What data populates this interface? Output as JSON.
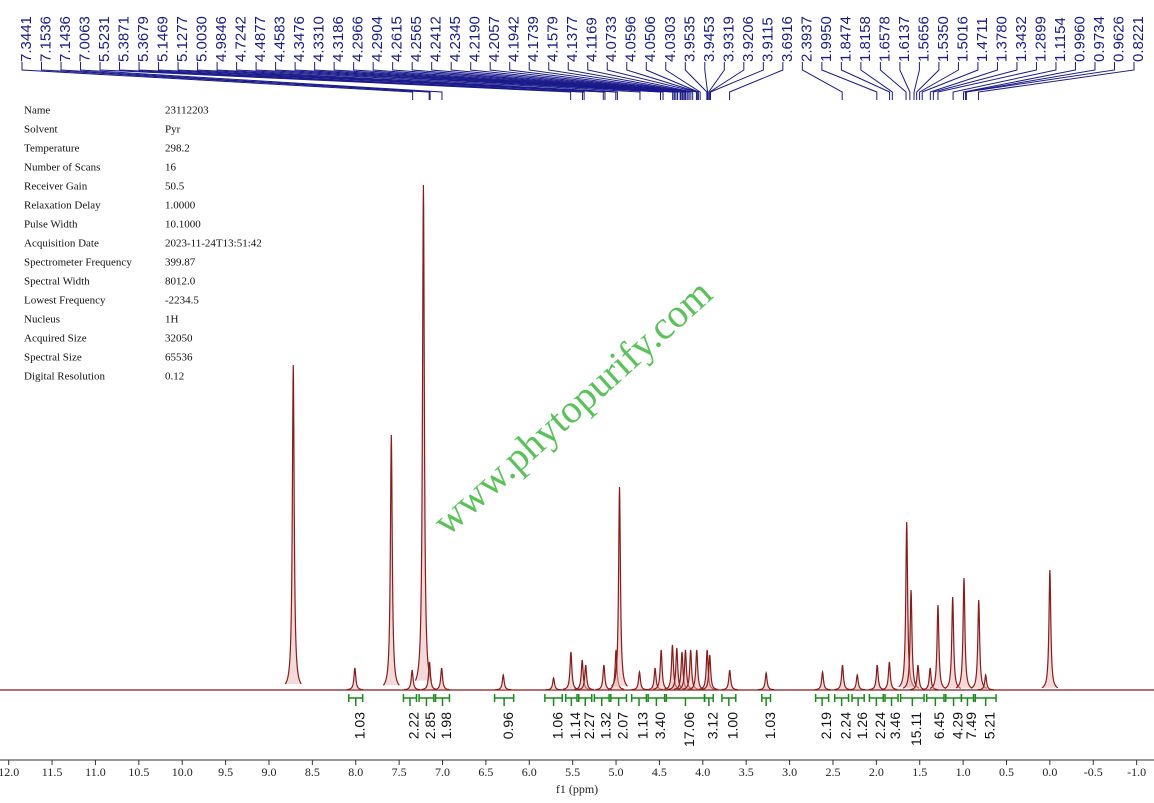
{
  "chart_data": {
    "type": "nmr",
    "x_label": "f1 (ppm)",
    "xlim": [
      12.1,
      -1.2
    ],
    "xticks": [
      {
        "value": 12,
        "label": "12.0"
      },
      11.5,
      {
        "value": 11,
        "label": "11.0"
      },
      10.5,
      {
        "value": 10,
        "label": "10.0"
      },
      9.5,
      {
        "value": 9,
        "label": "9.0"
      },
      8.5,
      {
        "value": 8,
        "label": "8.0"
      },
      7.5,
      {
        "value": 7,
        "label": "7.0"
      },
      6.5,
      {
        "value": 6,
        "label": "6.0"
      },
      5.5,
      {
        "value": 5,
        "label": "5.0"
      },
      4.5,
      {
        "value": 4,
        "label": "4.0"
      },
      3.5,
      {
        "value": 3,
        "label": "3.0"
      },
      2.5,
      {
        "value": 2,
        "label": "2.0"
      },
      1.5,
      {
        "value": 1,
        "label": "1.0"
      },
      0.5,
      {
        "value": 0,
        "label": "0.0"
      },
      -0.5,
      {
        "value": -1,
        "label": "-1.0"
      }
    ],
    "ylim": [
      0,
      105
    ],
    "color": "#8b1a1a",
    "label_color": "#1a1a8b",
    "integral_color": "#1a8b1a",
    "peaks": {
      "x": [
        8.72,
        8.01,
        7.59,
        7.35,
        7.22,
        7.15,
        7.01,
        6.3,
        5.72,
        5.52,
        5.39,
        5.35,
        5.14,
        5.0,
        4.96,
        4.73,
        4.55,
        4.48,
        4.35,
        4.3,
        4.24,
        4.2,
        4.14,
        4.07,
        3.95,
        3.92,
        3.69,
        3.27,
        2.62,
        2.39,
        2.22,
        1.99,
        1.85,
        1.65,
        1.6,
        1.52,
        1.38,
        1.29,
        1.12,
        0.99,
        0.82,
        0.74,
        0.0
      ],
      "values": [
        65,
        4.4,
        51,
        4,
        101,
        5.6,
        4.4,
        3,
        2.4,
        7.6,
        6,
        5,
        5,
        8,
        40.6,
        3.6,
        4.4,
        8,
        9,
        8.4,
        7.6,
        8,
        8,
        8,
        8,
        7,
        4,
        3.4,
        3.6,
        5,
        3,
        5,
        5.6,
        33.6,
        20,
        5,
        4.4,
        17,
        18.6,
        22.4,
        18,
        3,
        24
      ]
    },
    "peak_labels": [
      {
        "value": 7.3441,
        "label": "7.3441"
      },
      {
        "value": 7.1536,
        "label": "7.1536"
      },
      {
        "value": 7.1436,
        "label": "7.1436"
      },
      {
        "value": 7.0063,
        "label": "7.0063"
      },
      {
        "value": 5.5231,
        "label": "5.5231"
      },
      {
        "value": 5.3871,
        "label": "5.3871"
      },
      {
        "value": 5.3679,
        "label": "5.3679"
      },
      {
        "value": 5.1469,
        "label": "5.1469"
      },
      {
        "value": 5.1277,
        "label": "5.1277"
      },
      {
        "value": 5.003,
        "label": "5.0030"
      },
      {
        "value": 4.9846,
        "label": "4.9846"
      },
      {
        "value": 4.7242,
        "label": "4.7242"
      },
      {
        "value": 4.4877,
        "label": "4.4877"
      },
      {
        "value": 4.4583,
        "label": "4.4583"
      },
      {
        "value": 4.3476,
        "label": "4.3476"
      },
      {
        "value": 4.331,
        "label": "4.3310"
      },
      {
        "value": 4.3186,
        "label": "4.3186"
      },
      {
        "value": 4.2966,
        "label": "4.2966"
      },
      {
        "value": 4.2904,
        "label": "4.2904"
      },
      {
        "value": 4.2615,
        "label": "4.2615"
      },
      {
        "value": 4.2565,
        "label": "4.2565"
      },
      {
        "value": 4.2412,
        "label": "4.2412"
      },
      {
        "value": 4.2345,
        "label": "4.2345"
      },
      {
        "value": 4.219,
        "label": "4.2190"
      },
      {
        "value": 4.2057,
        "label": "4.2057"
      },
      {
        "value": 4.1942,
        "label": "4.1942"
      },
      {
        "value": 4.1739,
        "label": "4.1739"
      },
      {
        "value": 4.1579,
        "label": "4.1579"
      },
      {
        "value": 4.1377,
        "label": "4.1377"
      },
      {
        "value": 4.1169,
        "label": "4.1169"
      },
      {
        "value": 4.0733,
        "label": "4.0733"
      },
      {
        "value": 4.0596,
        "label": "4.0596"
      },
      {
        "value": 4.0506,
        "label": "4.0506"
      },
      {
        "value": 4.0303,
        "label": "4.0303"
      },
      {
        "value": 3.9535,
        "label": "3.9535"
      },
      {
        "value": 3.9453,
        "label": "3.9453"
      },
      {
        "value": 3.9319,
        "label": "3.9319"
      },
      {
        "value": 3.9206,
        "label": "3.9206"
      },
      {
        "value": 3.9115,
        "label": "3.9115"
      },
      {
        "value": 3.6916,
        "label": "3.6916"
      },
      {
        "value": 2.3937,
        "label": "2.3937"
      },
      {
        "value": 1.995,
        "label": "1.9950"
      },
      {
        "value": 1.8474,
        "label": "1.8474"
      },
      {
        "value": 1.8158,
        "label": "1.8158"
      },
      {
        "value": 1.6578,
        "label": "1.6578"
      },
      {
        "value": 1.6137,
        "label": "1.6137"
      },
      {
        "value": 1.5656,
        "label": "1.5656"
      },
      {
        "value": 1.535,
        "label": "1.5350"
      },
      {
        "value": 1.5016,
        "label": "1.5016"
      },
      {
        "value": 1.4711,
        "label": "1.4711"
      },
      {
        "value": 1.378,
        "label": "1.3780"
      },
      {
        "value": 1.3432,
        "label": "1.3432"
      },
      {
        "value": 1.2899,
        "label": "1.2899"
      },
      {
        "value": 1.1154,
        "label": "1.1154"
      },
      {
        "value": 0.996,
        "label": "0.9960"
      },
      {
        "value": 0.9734,
        "label": "0.9734"
      },
      {
        "value": 0.9626,
        "label": "0.9626"
      },
      {
        "value": 0.8221,
        "label": "0.8221"
      }
    ],
    "integrals": [
      {
        "range": [
          8.08,
          7.92
        ],
        "value": 1.03,
        "label": "1.03"
      },
      {
        "range": [
          7.45,
          7.3
        ],
        "value": 2.22,
        "label": "2.22"
      },
      {
        "range": [
          7.27,
          7.1
        ],
        "value": 2.85,
        "label": "2.85"
      },
      {
        "range": [
          7.08,
          6.92
        ],
        "value": 1.98,
        "label": "1.98"
      },
      {
        "range": [
          6.4,
          6.18
        ],
        "value": 0.96,
        "label": "0.96"
      },
      {
        "range": [
          5.82,
          5.62
        ],
        "value": 1.06,
        "label": "1.06"
      },
      {
        "range": [
          5.58,
          5.45
        ],
        "value": 1.14,
        "label": "1.14"
      },
      {
        "range": [
          5.43,
          5.28
        ],
        "value": 2.27,
        "label": "2.27"
      },
      {
        "range": [
          5.25,
          5.08
        ],
        "value": 1.32,
        "label": "1.32"
      },
      {
        "range": [
          5.06,
          4.88
        ],
        "value": 2.07,
        "label": "2.07"
      },
      {
        "range": [
          4.82,
          4.65
        ],
        "value": 1.13,
        "label": "1.13"
      },
      {
        "range": [
          4.63,
          4.44
        ],
        "value": 3.4,
        "label": "3.40"
      },
      {
        "range": [
          4.42,
          3.98
        ],
        "value": 17.06,
        "label": "17.06"
      },
      {
        "range": [
          3.98,
          3.88
        ],
        "value": 3.12,
        "label": "3.12"
      },
      {
        "range": [
          3.78,
          3.62
        ],
        "value": 1,
        "label": "1.00"
      },
      {
        "range": [
          3.32,
          3.22
        ],
        "value": 1.03,
        "label": "1.03"
      },
      {
        "range": [
          2.7,
          2.55
        ],
        "value": 2.19,
        "label": "2.19"
      },
      {
        "range": [
          2.48,
          2.32
        ],
        "value": 2.24,
        "label": "2.24"
      },
      {
        "range": [
          2.28,
          2.14
        ],
        "value": 1.26,
        "label": "1.26"
      },
      {
        "range": [
          2.08,
          1.92
        ],
        "value": 2.24,
        "label": "2.24"
      },
      {
        "range": [
          1.9,
          1.75
        ],
        "value": 3.46,
        "label": "3.46"
      },
      {
        "range": [
          1.72,
          1.45
        ],
        "value": 15.11,
        "label": "15.11"
      },
      {
        "range": [
          1.42,
          1.22
        ],
        "value": 6.45,
        "label": "6.45"
      },
      {
        "range": [
          1.2,
          1.02
        ],
        "value": 4.29,
        "label": "4.29"
      },
      {
        "range": [
          1.02,
          0.88
        ],
        "value": 7.49,
        "label": "7.49"
      },
      {
        "range": [
          0.86,
          0.62
        ],
        "value": 5.21,
        "label": "5.21"
      }
    ]
  },
  "parameters": [
    {
      "name": "Name",
      "value": "23112203"
    },
    {
      "name": "Solvent",
      "value": "Pyr"
    },
    {
      "name": "Temperature",
      "value": "298.2"
    },
    {
      "name": "Number of Scans",
      "value": "16"
    },
    {
      "name": "Receiver Gain",
      "value": "50.5"
    },
    {
      "name": "Relaxation Delay",
      "value": "1.0000"
    },
    {
      "name": "Pulse Width",
      "value": "10.1000"
    },
    {
      "name": "Acquisition Date",
      "value": "2023-11-24T13:51:42"
    },
    {
      "name": "Spectrometer Frequency",
      "value": "399.87"
    },
    {
      "name": "Spectral Width",
      "value": "8012.0"
    },
    {
      "name": "Lowest Frequency",
      "value": "-2234.5"
    },
    {
      "name": "Nucleus",
      "value": "1H"
    },
    {
      "name": "Acquired Size",
      "value": "32050"
    },
    {
      "name": "Spectral Size",
      "value": "65536"
    },
    {
      "name": "Digital Resolution",
      "value": "0.12"
    }
  ],
  "watermark": "www.phytopurify.com"
}
